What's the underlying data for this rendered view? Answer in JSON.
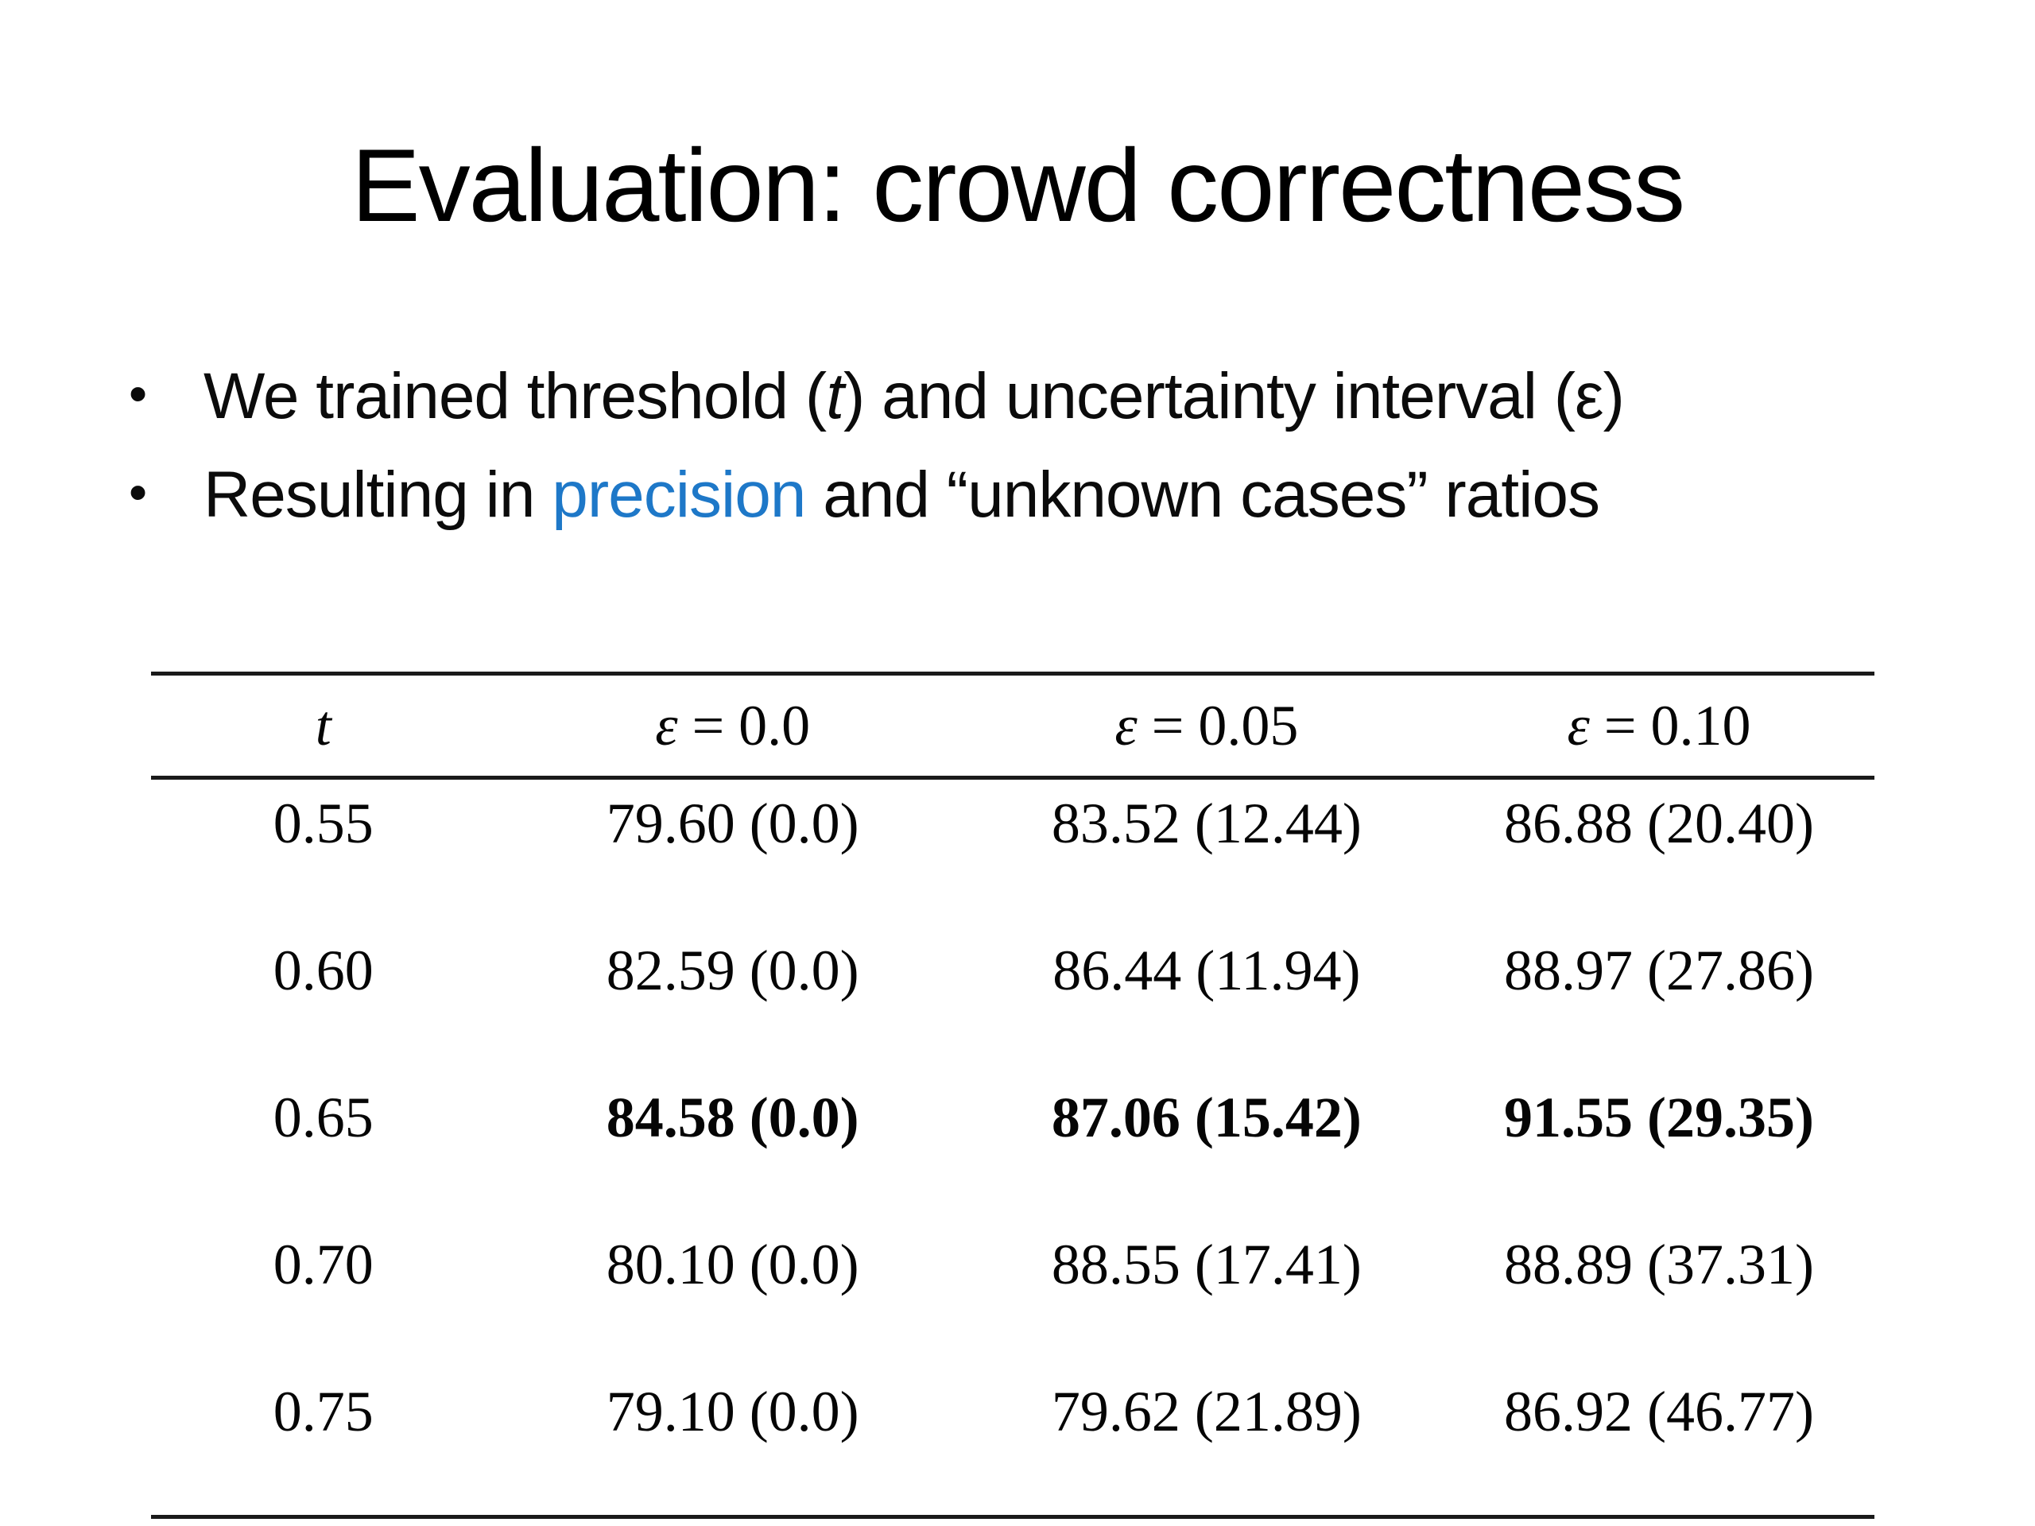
{
  "title": "Evaluation: crowd correctness",
  "accent_color": "#1E78C8",
  "bullets": {
    "dot": "•",
    "b1_pre": "We trained threshold (",
    "b1_var": "t",
    "b1_post": ") and uncertainty interval (ε)",
    "b2_pre": "Resulting in ",
    "b2_highlight": "precision",
    "b2_post": " and “unknown cases” ratios"
  },
  "table": {
    "header_t": "t",
    "headers": [
      {
        "symbol": "ε",
        "rest": " = 0.0"
      },
      {
        "symbol": "ε",
        "rest": " = 0.05"
      },
      {
        "symbol": "ε",
        "rest": " = 0.10"
      }
    ],
    "rows": [
      {
        "t": "0.55",
        "c1": "79.60 (0.0)",
        "c2": "83.52 (12.44)",
        "c3": "86.88 (20.40)"
      },
      {
        "t": "0.60",
        "c1": "82.59 (0.0)",
        "c2": "86.44 (11.94)",
        "c3": "88.97 (27.86)"
      },
      {
        "t": "0.65",
        "c1": "84.58 (0.0)",
        "c2": "87.06 (15.42)",
        "c3": "91.55 (29.35)"
      },
      {
        "t": "0.70",
        "c1": "80.10 (0.0)",
        "c2": "88.55 (17.41)",
        "c3": "88.89 (37.31)"
      },
      {
        "t": "0.75",
        "c1": "79.10 (0.0)",
        "c2": "79.62 (21.89)",
        "c3": "86.92 (46.77)"
      }
    ]
  }
}
